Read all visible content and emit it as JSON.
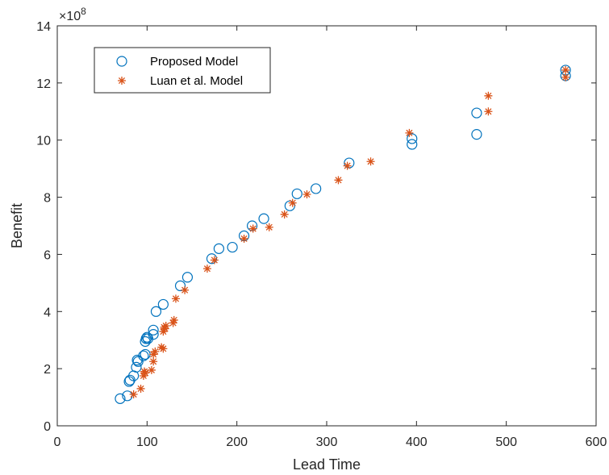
{
  "chart_data": {
    "type": "scatter",
    "xlabel": "Lead Time",
    "ylabel": "Benefit",
    "xlim": [
      0,
      600
    ],
    "ylim": [
      0,
      14
    ],
    "y_multiplier": "×10",
    "y_multiplier_exponent": "8",
    "x_ticks": [
      0,
      100,
      200,
      300,
      400,
      500,
      600
    ],
    "y_ticks": [
      0,
      2,
      4,
      6,
      8,
      10,
      12,
      14
    ],
    "grid": false,
    "legend_position": "top-left",
    "series": [
      {
        "name": "Proposed Model",
        "marker": "circle",
        "color": "#0072BD",
        "points": [
          [
            70,
            0.95
          ],
          [
            78,
            1.05
          ],
          [
            80,
            1.55
          ],
          [
            81,
            1.6
          ],
          [
            85,
            1.75
          ],
          [
            88,
            2.05
          ],
          [
            89,
            2.3
          ],
          [
            90,
            2.25
          ],
          [
            96,
            2.45
          ],
          [
            98,
            2.5
          ],
          [
            98,
            2.95
          ],
          [
            99,
            3.05
          ],
          [
            100,
            3.1
          ],
          [
            101,
            3.05
          ],
          [
            107,
            3.2
          ],
          [
            107,
            3.35
          ],
          [
            110,
            4.0
          ],
          [
            118,
            4.25
          ],
          [
            137,
            4.9
          ],
          [
            145,
            5.2
          ],
          [
            172,
            5.85
          ],
          [
            180,
            6.2
          ],
          [
            195,
            6.25
          ],
          [
            208,
            6.65
          ],
          [
            217,
            7.0
          ],
          [
            230,
            7.25
          ],
          [
            259,
            7.7
          ],
          [
            267,
            8.12
          ],
          [
            288,
            8.3
          ],
          [
            325,
            9.2
          ],
          [
            395,
            9.85
          ],
          [
            395,
            10.05
          ],
          [
            467,
            10.2
          ],
          [
            467,
            10.95
          ],
          [
            566,
            12.25
          ],
          [
            566,
            12.45
          ]
        ]
      },
      {
        "name": "Luan et al. Model",
        "marker": "star",
        "color": "#D95319",
        "points": [
          [
            85,
            1.1
          ],
          [
            93,
            1.3
          ],
          [
            96,
            1.75
          ],
          [
            97,
            1.9
          ],
          [
            98,
            1.85
          ],
          [
            105,
            1.95
          ],
          [
            107,
            2.25
          ],
          [
            107,
            2.5
          ],
          [
            109,
            2.6
          ],
          [
            116,
            2.75
          ],
          [
            118,
            2.7
          ],
          [
            118,
            3.3
          ],
          [
            119,
            3.45
          ],
          [
            120,
            3.4
          ],
          [
            121,
            3.5
          ],
          [
            129,
            3.6
          ],
          [
            130,
            3.7
          ],
          [
            132,
            4.45
          ],
          [
            142,
            4.75
          ],
          [
            167,
            5.5
          ],
          [
            175,
            5.8
          ],
          [
            208,
            6.55
          ],
          [
            218,
            6.9
          ],
          [
            236,
            6.95
          ],
          [
            253,
            7.4
          ],
          [
            262,
            7.8
          ],
          [
            278,
            8.1
          ],
          [
            313,
            8.6
          ],
          [
            323,
            9.1
          ],
          [
            349,
            9.25
          ],
          [
            392,
            10.25
          ],
          [
            480,
            11.0
          ],
          [
            480,
            11.55
          ],
          [
            566,
            12.2
          ],
          [
            566,
            12.45
          ]
        ]
      }
    ]
  }
}
